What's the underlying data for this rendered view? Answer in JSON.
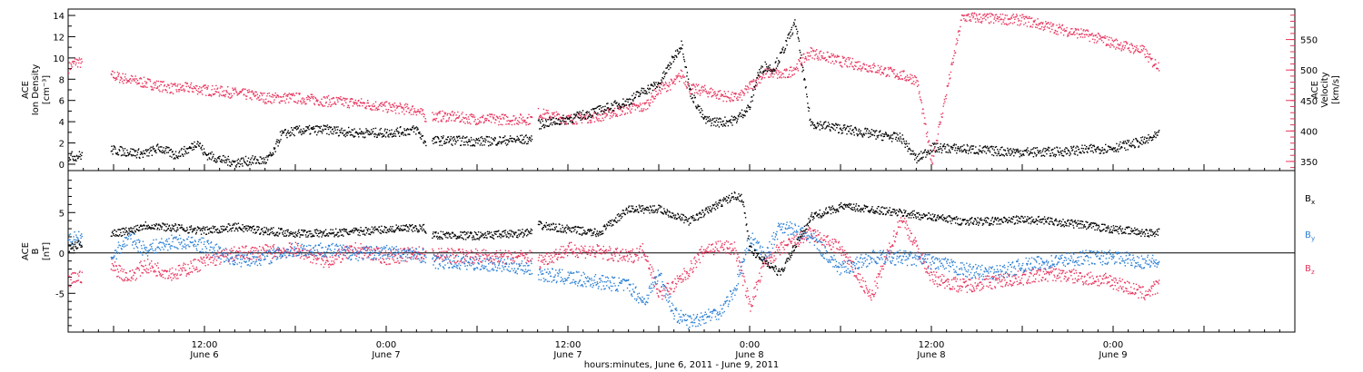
{
  "colors": {
    "black": "#000000",
    "red": "#e8365f",
    "blue": "#2b7fd4"
  },
  "x_axis": {
    "ticks": [
      {
        "t": 12,
        "label": "12:00",
        "sub": "June 6"
      },
      {
        "t": 24,
        "label": "0:00",
        "sub": "June 7"
      },
      {
        "t": 36,
        "label": "12:00",
        "sub": "June 7"
      },
      {
        "t": 48,
        "label": "0:00",
        "sub": "June 8"
      },
      {
        "t": 60,
        "label": "12:00",
        "sub": "June 8"
      },
      {
        "t": 72,
        "label": "0:00",
        "sub": "June 9"
      }
    ],
    "title": "hours:minutes, June  6, 2011 - June  9, 2011"
  },
  "chart_data": [
    {
      "type": "scatter",
      "xlim": [
        3,
        84
      ],
      "ylabel_left": [
        "ACE",
        "Ion Density",
        "[cm⁻³]"
      ],
      "ylabel_right": [
        "ACE",
        "Velocity",
        "[km/s]"
      ],
      "ylim_left": [
        -0.6,
        14.6
      ],
      "ylim_right": [
        335,
        600
      ],
      "yticks_left": [
        0,
        2,
        4,
        6,
        8,
        10,
        12,
        14
      ],
      "yticks_right": [
        350,
        400,
        450,
        500,
        550
      ],
      "series": [
        {
          "axis": "left",
          "color": "#000000",
          "x": [
            3,
            3.5,
            5.8,
            7,
            8,
            9,
            10,
            11,
            11.5,
            12,
            13,
            14,
            15,
            16,
            16.5,
            17,
            18,
            20,
            22,
            24,
            26,
            26.5,
            28,
            30,
            32,
            33.5,
            34,
            36,
            38,
            40,
            41,
            42,
            43,
            43.5,
            44,
            45,
            46,
            47,
            48,
            48.5,
            49,
            49.5,
            50,
            50.5,
            51,
            52,
            54,
            56,
            58,
            59,
            60,
            62,
            64,
            66,
            68,
            70,
            72,
            74,
            74.5,
            75
          ],
          "y": [
            0.8,
            0.8,
            1.4,
            1.2,
            1.0,
            1.6,
            0.9,
            1.5,
            2.2,
            1.0,
            0.5,
            0.2,
            0.4,
            0.4,
            1.0,
            2.8,
            3.2,
            3.3,
            3.0,
            3.0,
            3.3,
            2.2,
            2.3,
            2.2,
            2.3,
            2.4,
            3.8,
            4.3,
            5.1,
            6.0,
            7.0,
            7.6,
            10.2,
            11.4,
            7.0,
            4.2,
            4.0,
            4.2,
            5.5,
            8.5,
            9.3,
            9.0,
            10.2,
            11.8,
            13.4,
            3.9,
            3.4,
            2.9,
            2.5,
            0.5,
            1.6,
            1.5,
            1.3,
            1.2,
            1.2,
            1.4,
            1.6,
            2.2,
            2.5,
            2.8
          ]
        },
        {
          "axis": "right",
          "color": "#e8365f",
          "x": [
            3,
            3.5,
            5.8,
            7,
            8,
            9,
            10,
            11,
            12,
            13,
            14,
            15,
            16,
            17,
            18,
            20,
            22,
            24,
            26,
            26.5,
            28,
            30,
            32,
            33.5,
            34,
            36,
            38,
            40,
            41,
            42,
            43,
            43.5,
            44,
            45,
            46,
            47,
            47.5,
            48,
            49,
            49.5,
            50,
            50.5,
            51,
            52,
            54,
            56,
            58,
            59,
            60,
            62,
            64,
            66,
            68,
            70,
            72,
            74,
            74.5,
            75
          ],
          "y": [
            505,
            515,
            492,
            485,
            480,
            475,
            470,
            472,
            468,
            466,
            463,
            460,
            455,
            455,
            455,
            450,
            447,
            440,
            435,
            425,
            425,
            420,
            420,
            420,
            430,
            420,
            425,
            438,
            440,
            470,
            480,
            495,
            470,
            467,
            460,
            455,
            460,
            475,
            495,
            497,
            492,
            495,
            505,
            530,
            515,
            505,
            492,
            485,
            350,
            588,
            585,
            583,
            570,
            560,
            545,
            532,
            515,
            508
          ]
        }
      ]
    },
    {
      "type": "scatter",
      "xlim": [
        3,
        84
      ],
      "ylabel": [
        "ACE",
        "B",
        "[nT]"
      ],
      "ylim": [
        -9.8,
        10.2
      ],
      "yticks": [
        -5,
        0,
        5
      ],
      "hline": 0,
      "series": [
        {
          "name": "Bx",
          "color": "#000000",
          "x": [
            3,
            3.5,
            5.8,
            7,
            8,
            10,
            12,
            14,
            16,
            18,
            20,
            22,
            24,
            26,
            26.5,
            27,
            30,
            32,
            33.5,
            34,
            36,
            38,
            40,
            42,
            44,
            46,
            47,
            47.5,
            48,
            49,
            50,
            52,
            54,
            56,
            58,
            60,
            62,
            64,
            66,
            68,
            70,
            72,
            74,
            74.5,
            75
          ],
          "y": [
            0.5,
            1.0,
            2.5,
            2.8,
            3.5,
            3.2,
            2.8,
            3.3,
            2.8,
            2.5,
            2.5,
            2.7,
            3.0,
            3.1,
            3.1,
            2.3,
            2.2,
            2.4,
            2.6,
            3.5,
            3.0,
            2.5,
            5.5,
            5.5,
            4.0,
            6.2,
            7.2,
            6.8,
            0.5,
            -1.0,
            -2.5,
            4.5,
            5.8,
            5.5,
            5.0,
            4.5,
            4.0,
            4.0,
            4.2,
            4.0,
            3.5,
            3.0,
            2.6,
            2.5,
            2.8
          ]
        },
        {
          "name": "By",
          "color": "#2b7fd4",
          "x": [
            3,
            3.5,
            5.8,
            7,
            8,
            10,
            12,
            14,
            16,
            18,
            20,
            22,
            24,
            26,
            26.5,
            27,
            30,
            32,
            33.5,
            34,
            36,
            38,
            40,
            41,
            42,
            43,
            44,
            45,
            46,
            47,
            48,
            49,
            50,
            52,
            54,
            56,
            58,
            60,
            62,
            64,
            66,
            68,
            70,
            72,
            74,
            74.5,
            75
          ],
          "y": [
            1.5,
            2.0,
            -0.5,
            2.0,
            0.5,
            1.5,
            1.0,
            -0.8,
            -0.5,
            0.5,
            0.5,
            0.0,
            0.2,
            -0.2,
            -0.2,
            -1.0,
            -1.2,
            -1.5,
            -1.8,
            -2.5,
            -3.0,
            -3.5,
            -4.0,
            -6.0,
            -2.5,
            -7.5,
            -8.5,
            -7.8,
            -7.2,
            -4.5,
            2.0,
            -0.5,
            3.5,
            2.0,
            -2.0,
            -0.5,
            -0.5,
            -1.0,
            -2.0,
            -2.5,
            -1.5,
            -1.0,
            -0.5,
            -0.5,
            -1.0,
            -1.0,
            -1.2
          ]
        },
        {
          "name": "Bz",
          "color": "#e8365f",
          "x": [
            3,
            3.5,
            5.8,
            7,
            8,
            10,
            12,
            14,
            16,
            18,
            20,
            22,
            24,
            26,
            26.5,
            27,
            30,
            32,
            33.5,
            34,
            36,
            38,
            40,
            41,
            42,
            43,
            44,
            45,
            46,
            47,
            48,
            49,
            50,
            52,
            54,
            56,
            58,
            60,
            62,
            64,
            66,
            68,
            70,
            72,
            74,
            74.5,
            75
          ],
          "y": [
            -3.5,
            -3.0,
            -1.5,
            -3.0,
            -1.5,
            -2.5,
            -1.0,
            0.0,
            0.2,
            0.5,
            -1.0,
            0.5,
            -0.5,
            0.0,
            0.0,
            -0.2,
            -0.3,
            -0.5,
            -0.4,
            -1.0,
            0.5,
            0.2,
            -0.5,
            0.5,
            -5.0,
            -4.0,
            -2.0,
            0.5,
            0.8,
            0.6,
            -6.5,
            -1.0,
            0.5,
            2.5,
            0.5,
            -5.5,
            4.5,
            -3.0,
            -4.0,
            -3.5,
            -3.0,
            -2.5,
            -3.0,
            -3.5,
            -5.0,
            -4.5,
            -4.0
          ]
        }
      ],
      "legend": [
        {
          "text": "B",
          "sub": "x",
          "color": "#000000"
        },
        {
          "text": "B",
          "sub": "y",
          "color": "#2b7fd4"
        },
        {
          "text": "B",
          "sub": "z",
          "color": "#e8365f"
        }
      ]
    }
  ]
}
